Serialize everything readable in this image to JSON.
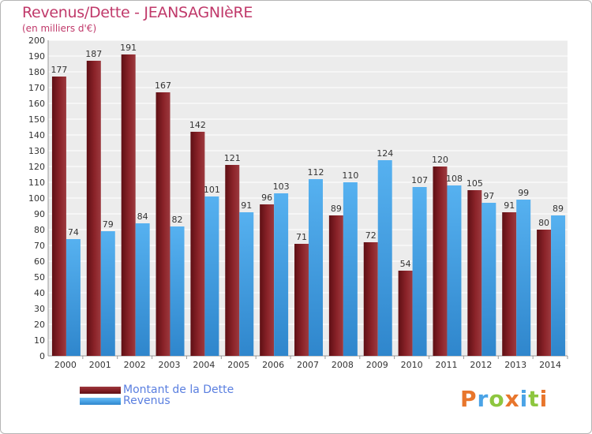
{
  "chart_data": {
    "type": "bar",
    "title": "Revenus/Dette - JEANSAGNIèRE",
    "subtitle": "(en milliers d'€)",
    "categories": [
      "2000",
      "2001",
      "2002",
      "2003",
      "2004",
      "2005",
      "2006",
      "2007",
      "2008",
      "2009",
      "2010",
      "2011",
      "2012",
      "2013",
      "2014"
    ],
    "series": [
      {
        "name": "Montant de la Dette",
        "color": "#8b2329",
        "values": [
          177,
          187,
          191,
          167,
          142,
          121,
          96,
          71,
          89,
          72,
          54,
          120,
          105,
          91,
          80
        ]
      },
      {
        "name": "Revenus",
        "color": "#4aa3e6",
        "values": [
          74,
          79,
          84,
          82,
          101,
          91,
          103,
          112,
          110,
          124,
          107,
          108,
          97,
          99,
          89
        ]
      }
    ],
    "ylim": [
      0,
      200
    ],
    "ytick_step": 10,
    "grid": true,
    "legend_position": "bottom-left"
  },
  "logo": {
    "text": "Proxiti",
    "letter_colors": [
      "#e8762c",
      "#4aa3e6",
      "#8dc63f",
      "#e8762c",
      "#4aa3e6",
      "#8dc63f",
      "#e8762c"
    ]
  }
}
